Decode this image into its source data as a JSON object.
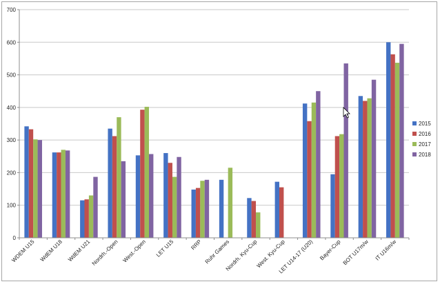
{
  "chart_data": {
    "type": "bar",
    "categories": [
      "WDEM U15",
      "WdEM U18",
      "WdEM U21",
      "Nordrh.-Open",
      "West.-Open",
      "LET U15",
      "RRP",
      "Ruhr Games",
      "Nordrh. Kyu-Cup",
      "West. Kyu-Cup",
      "LET U14-17 (U20)",
      "Bayer-Cup",
      "BOT U17m/w",
      "IT U16m/w"
    ],
    "series": [
      {
        "name": "2015",
        "color": "#4472c4",
        "values": [
          342,
          262,
          115,
          335,
          253,
          260,
          148,
          178,
          122,
          172,
          412,
          195,
          435,
          600
        ]
      },
      {
        "name": "2016",
        "color": "#c0504d",
        "values": [
          333,
          262,
          118,
          312,
          393,
          230,
          153,
          null,
          113,
          155,
          358,
          312,
          420,
          563
        ]
      },
      {
        "name": "2017",
        "color": "#9bbb59",
        "values": [
          302,
          270,
          130,
          370,
          402,
          187,
          175,
          215,
          78,
          null,
          415,
          318,
          428,
          537
        ]
      },
      {
        "name": "2018",
        "color": "#8064a2",
        "values": [
          300,
          268,
          187,
          235,
          257,
          248,
          178,
          null,
          null,
          null,
          450,
          535,
          485,
          595
        ]
      }
    ],
    "yticks": [
      0,
      100,
      200,
      300,
      400,
      500,
      600,
      700
    ],
    "ylim": [
      0,
      700
    ],
    "grid": true,
    "legend": "right"
  }
}
